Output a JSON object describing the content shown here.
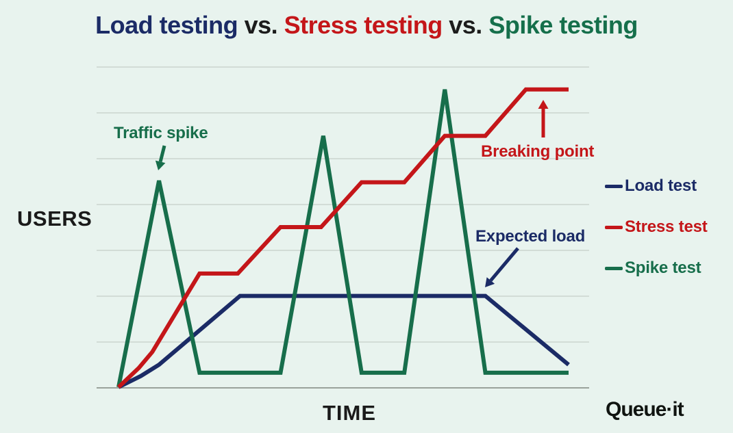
{
  "title": {
    "segments": [
      {
        "text": "Load testing",
        "color": "#1b2b66"
      },
      {
        "text": " vs. ",
        "color": "#1c1c1c"
      },
      {
        "text": "Stress testing",
        "color": "#c41619"
      },
      {
        "text": " vs. ",
        "color": "#1c1c1c"
      },
      {
        "text": "Spike testing",
        "color": "#156f4b"
      }
    ]
  },
  "logo": {
    "text": "Queue·it"
  },
  "colors": {
    "background": "#e8f3ee",
    "gridline": "#c5cfc8",
    "axis": "#99a29b",
    "navy": "#1b2b66",
    "red": "#c41619",
    "green": "#176e4b",
    "label_black": "#1a1a1a"
  },
  "chart_data": {
    "type": "line",
    "title": "Load testing vs. Stress testing vs. Spike testing",
    "xlabel": "TIME",
    "ylabel": "USERS",
    "x_range": [
      0,
      100
    ],
    "y_range": [
      0,
      100
    ],
    "grid": "horizontal gridlines only, 7 light lines plus darker baseline axis, no tick labels",
    "legend_position": "right",
    "series": [
      {
        "name": "Load test",
        "color": "#1b2b66",
        "points": [
          [
            0,
            0
          ],
          [
            5,
            3.5
          ],
          [
            9,
            7
          ],
          [
            27,
            28.5
          ],
          [
            81.5,
            28.5
          ],
          [
            100,
            7
          ]
        ]
      },
      {
        "name": "Stress test",
        "color": "#c41619",
        "points": [
          [
            0,
            0
          ],
          [
            4.5,
            6
          ],
          [
            7.5,
            11
          ],
          [
            18,
            35.5
          ],
          [
            26.5,
            35.5
          ],
          [
            36,
            50
          ],
          [
            45,
            50
          ],
          [
            54,
            64
          ],
          [
            63.5,
            64
          ],
          [
            72.5,
            78.5
          ],
          [
            81.5,
            78.5
          ],
          [
            90.5,
            93
          ],
          [
            100,
            93
          ]
        ]
      },
      {
        "name": "Spike test",
        "color": "#176e4b",
        "points": [
          [
            0,
            0
          ],
          [
            9,
            64.5
          ],
          [
            18,
            4.5
          ],
          [
            36,
            4.5
          ],
          [
            45.5,
            78.5
          ],
          [
            54,
            4.5
          ],
          [
            63.5,
            4.5
          ],
          [
            72.5,
            93
          ],
          [
            81.5,
            4.5
          ],
          [
            100,
            4.5
          ]
        ]
      }
    ],
    "annotations": [
      {
        "text": "Traffic spike",
        "color": "#176e4b",
        "target": "first Spike test peak"
      },
      {
        "text": "Breaking point",
        "color": "#c41619",
        "target": "Stress test final top plateau"
      },
      {
        "text": "Expected load",
        "color": "#1b2b66",
        "target": "Load test flat plateau"
      }
    ]
  }
}
